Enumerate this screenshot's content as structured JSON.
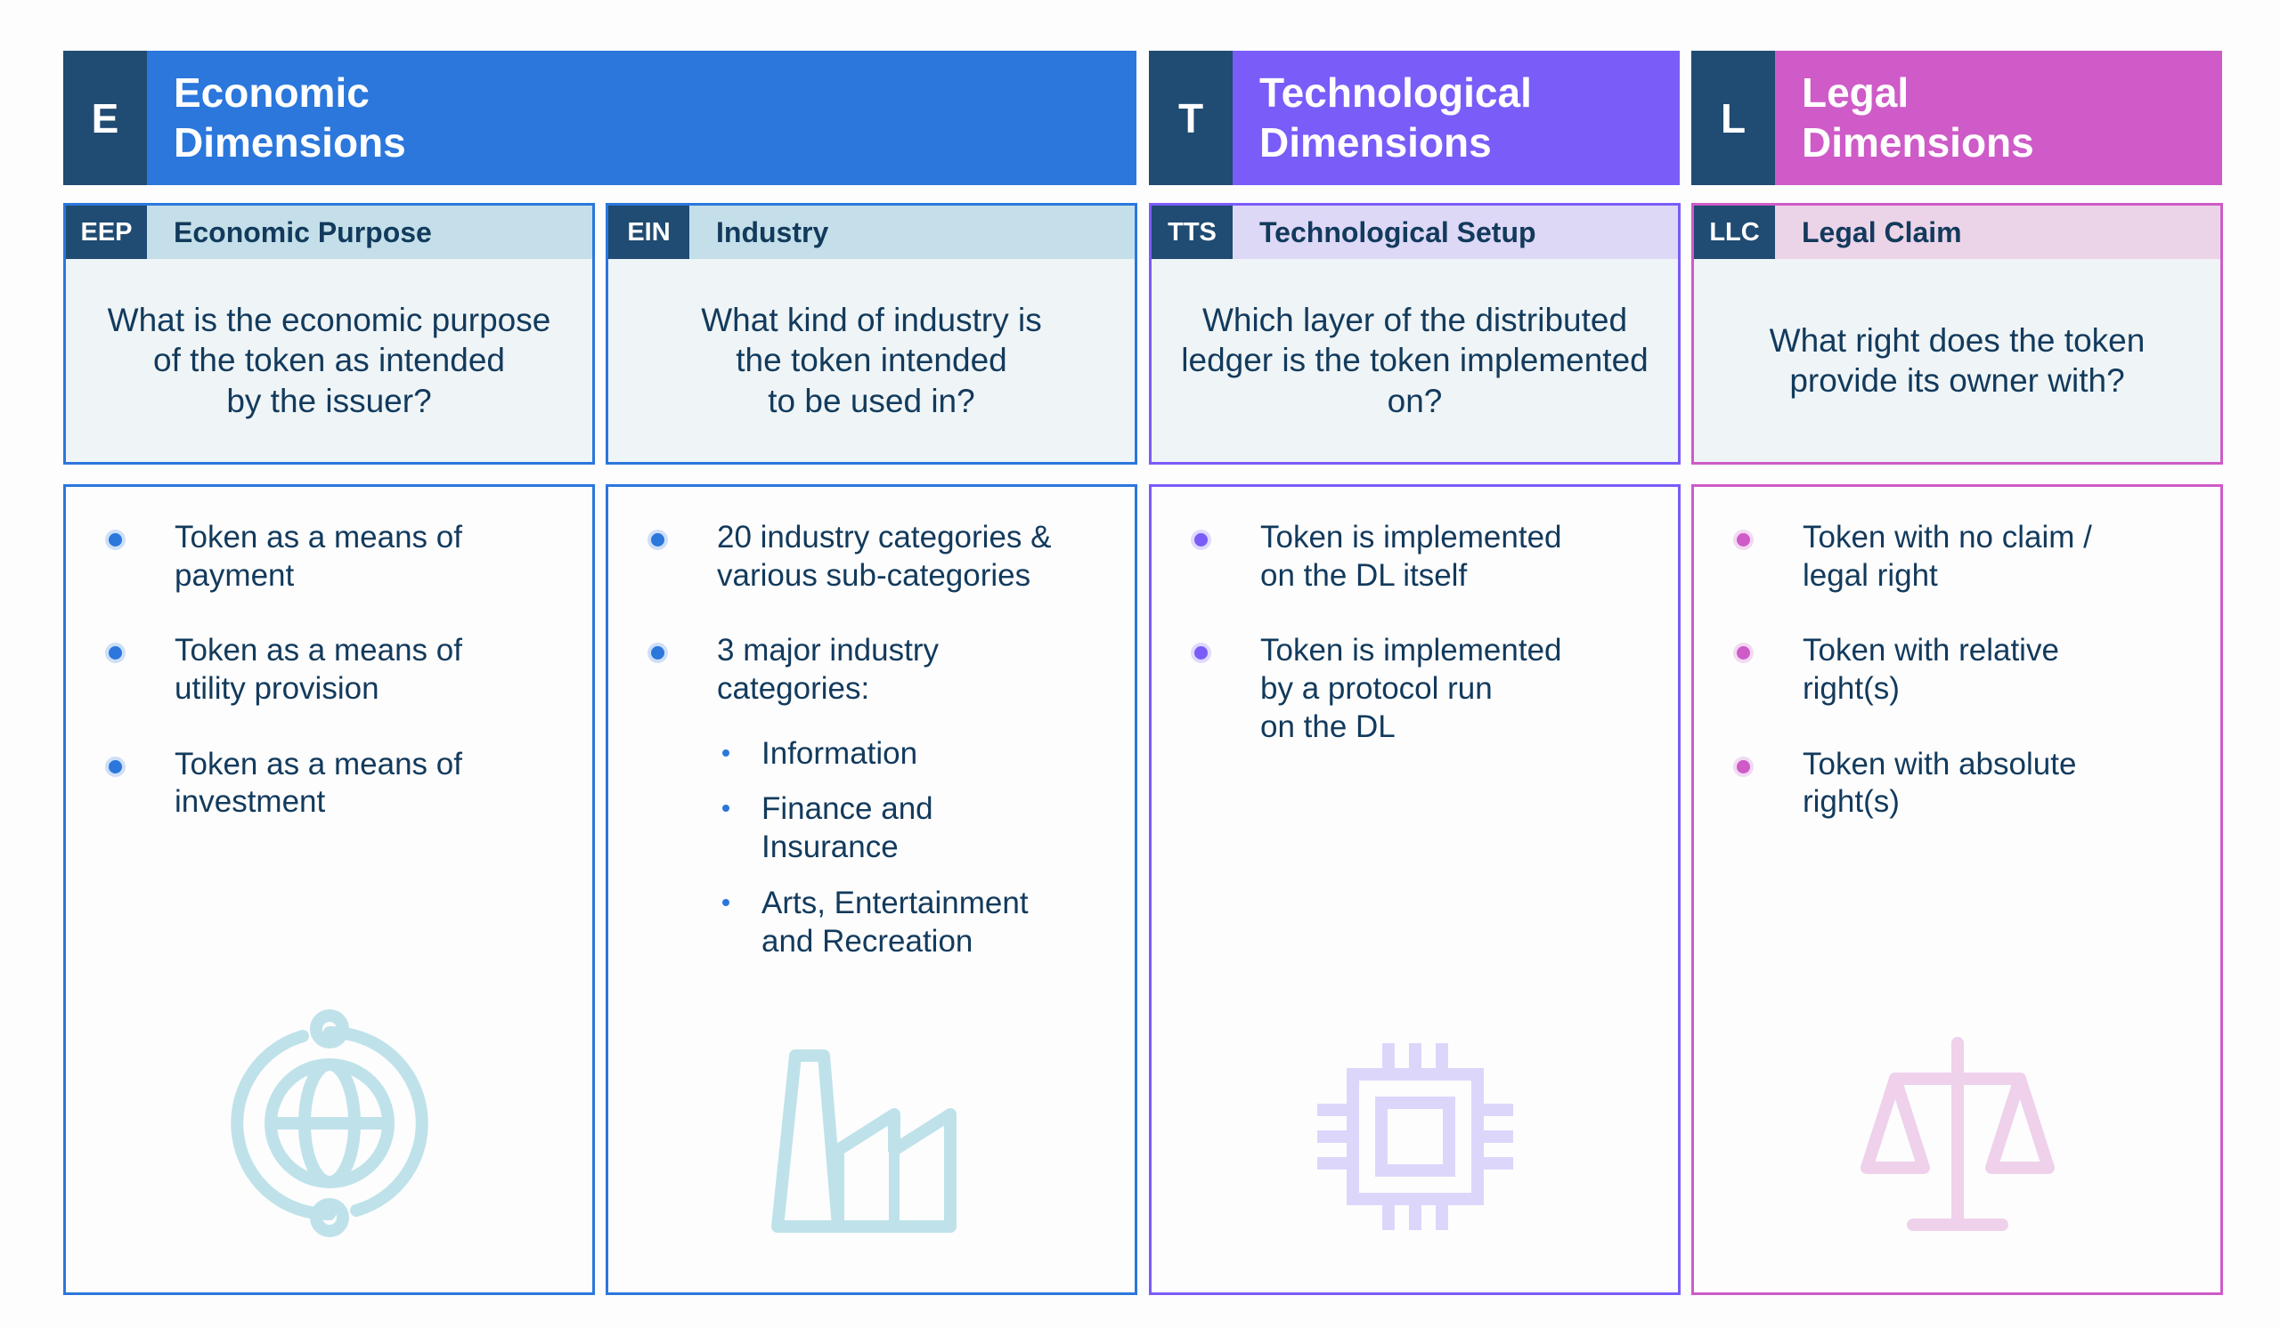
{
  "dimensions": {
    "economic": {
      "letter": "E",
      "title": "Economic\nDimensions"
    },
    "technological": {
      "letter": "T",
      "title": "Technological\nDimensions"
    },
    "legal": {
      "letter": "L",
      "title": "Legal\nDimensions"
    }
  },
  "columns": {
    "eep": {
      "code": "EEP",
      "label": "Economic Purpose",
      "question": "What is the economic purpose\nof the token as intended\nby the issuer?",
      "items": [
        "Token as a means of\npayment",
        "Token as a means of\nutility provision",
        "Token as a means of\ninvestment"
      ],
      "icon": "globe-icon"
    },
    "ein": {
      "code": "EIN",
      "label": "Industry",
      "question": "What kind of industry is\nthe token intended\nto be used in?",
      "items": [
        "20 industry categories &\nvarious sub-categories",
        "3 major industry\ncategories:"
      ],
      "subitems": [
        "Information",
        "Finance and\nInsurance",
        "Arts, Entertainment\nand Recreation"
      ],
      "icon": "factory-icon"
    },
    "tts": {
      "code": "TTS",
      "label": "Technological Setup",
      "question": "Which layer of the distributed\nledger is the token implemented\non?",
      "items": [
        "Token is implemented\non the DL itself",
        "Token is implemented\nby a protocol run\non the DL"
      ],
      "icon": "chip-icon"
    },
    "llc": {
      "code": "LLC",
      "label": "Legal Claim",
      "question": "What right does the token\nprovide its owner with?",
      "items": [
        "Token with no claim /\nlegal right",
        "Token with relative\nright(s)",
        "Token with absolute\nright(s)"
      ],
      "icon": "scales-icon"
    }
  },
  "colors": {
    "economic": "#2b77dc",
    "technological": "#7a5cf8",
    "legal": "#ce5bc8",
    "code_bg": "#204b72",
    "icon_econ": "#bfe2ea",
    "icon_tech": "#ddd6fb",
    "icon_legal": "#efd1eb"
  }
}
